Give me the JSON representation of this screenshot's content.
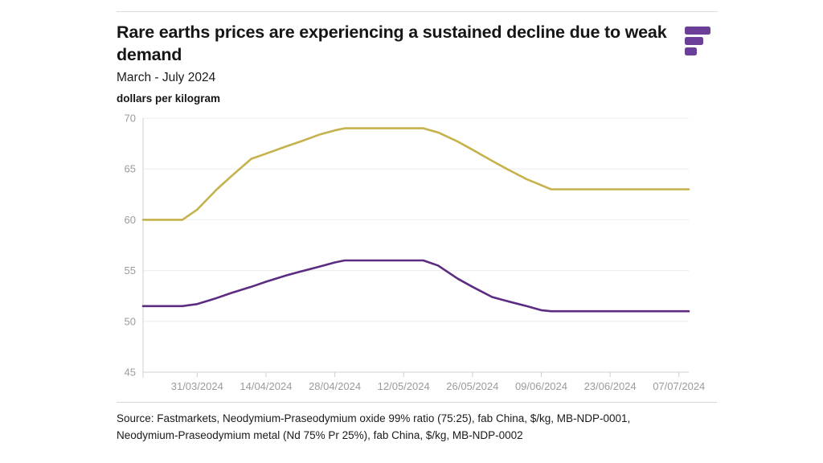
{
  "header": {
    "title": "Rare earths prices are experiencing a sustained decline due to weak demand",
    "subtitle": "March - July 2024",
    "units_label": "dollars per kilogram"
  },
  "brand": {
    "logo_name": "fastmarkets-logo",
    "logo_color": "#6B3E98"
  },
  "footer": {
    "source_line1": "Source: Fastmarkets, Neodymium-Praseodymium oxide 99% ratio (75:25), fab China, $/kg, MB-NDP-0001,",
    "source_line2": "Neodymium-Praseodymium metal (Nd 75% Pr 25%), fab China, $/kg, MB-NDP-0002"
  },
  "chart_data": {
    "type": "line",
    "title": "Rare earths prices are experiencing a sustained decline due to weak demand",
    "subtitle": "March - July 2024",
    "ylabel": "dollars per kilogram",
    "xlabel": "",
    "ylim": [
      45,
      70
    ],
    "y_ticks": [
      70,
      65,
      60,
      55,
      50,
      45
    ],
    "x_tick_labels": [
      "31/03/2024",
      "14/04/2024",
      "28/04/2024",
      "12/05/2024",
      "26/05/2024",
      "09/06/2024",
      "23/06/2024",
      "07/07/2024"
    ],
    "x_tick_days": [
      11,
      25,
      39,
      53,
      67,
      81,
      95,
      109
    ],
    "x_domain_days": [
      0,
      111
    ],
    "x_domain_dates": [
      "20/03/2024",
      "09/07/2024"
    ],
    "grid": "horizontal",
    "legend": "none",
    "colors": {
      "grid": "#ececec",
      "axis": "#cfcfcf",
      "tick_label": "#9b9b9b"
    },
    "series": [
      {
        "id": "oxide",
        "name": "Neodymium-Praseodymium oxide 99% ratio (75:25), fab China, $/kg, MB-NDP-0001",
        "color": "#C6B24D",
        "points": [
          [
            0,
            60
          ],
          [
            4,
            60
          ],
          [
            8,
            60
          ],
          [
            11,
            61
          ],
          [
            15,
            63
          ],
          [
            18,
            64.3
          ],
          [
            22,
            66
          ],
          [
            25,
            66.5
          ],
          [
            29,
            67.2
          ],
          [
            32,
            67.7
          ],
          [
            36,
            68.4
          ],
          [
            39,
            68.8
          ],
          [
            41,
            69
          ],
          [
            46,
            69
          ],
          [
            50,
            69
          ],
          [
            53,
            69
          ],
          [
            57,
            69
          ],
          [
            60,
            68.6
          ],
          [
            64,
            67.7
          ],
          [
            67,
            66.9
          ],
          [
            71,
            65.8
          ],
          [
            74,
            65
          ],
          [
            78,
            64
          ],
          [
            81,
            63.4
          ],
          [
            83,
            63
          ],
          [
            88,
            63
          ],
          [
            92,
            63
          ],
          [
            95,
            63
          ],
          [
            99,
            63
          ],
          [
            102,
            63
          ],
          [
            106,
            63
          ],
          [
            109,
            63
          ],
          [
            111,
            63
          ]
        ]
      },
      {
        "id": "metal",
        "name": "Neodymium-Praseodymium metal (Nd 75% Pr 25%), fab China, $/kg, MB-NDP-0002",
        "color": "#5B2C82",
        "points": [
          [
            0,
            51.5
          ],
          [
            4,
            51.5
          ],
          [
            8,
            51.5
          ],
          [
            11,
            51.7
          ],
          [
            15,
            52.3
          ],
          [
            18,
            52.8
          ],
          [
            22,
            53.4
          ],
          [
            25,
            53.9
          ],
          [
            29,
            54.5
          ],
          [
            32,
            54.9
          ],
          [
            36,
            55.4
          ],
          [
            39,
            55.8
          ],
          [
            41,
            56
          ],
          [
            46,
            56
          ],
          [
            50,
            56
          ],
          [
            53,
            56
          ],
          [
            57,
            56
          ],
          [
            60,
            55.5
          ],
          [
            64,
            54.2
          ],
          [
            67,
            53.4
          ],
          [
            71,
            52.4
          ],
          [
            74,
            52
          ],
          [
            78,
            51.5
          ],
          [
            81,
            51.1
          ],
          [
            83,
            51
          ],
          [
            88,
            51
          ],
          [
            92,
            51
          ],
          [
            95,
            51
          ],
          [
            99,
            51
          ],
          [
            102,
            51
          ],
          [
            106,
            51
          ],
          [
            109,
            51
          ],
          [
            111,
            51
          ]
        ]
      }
    ]
  }
}
